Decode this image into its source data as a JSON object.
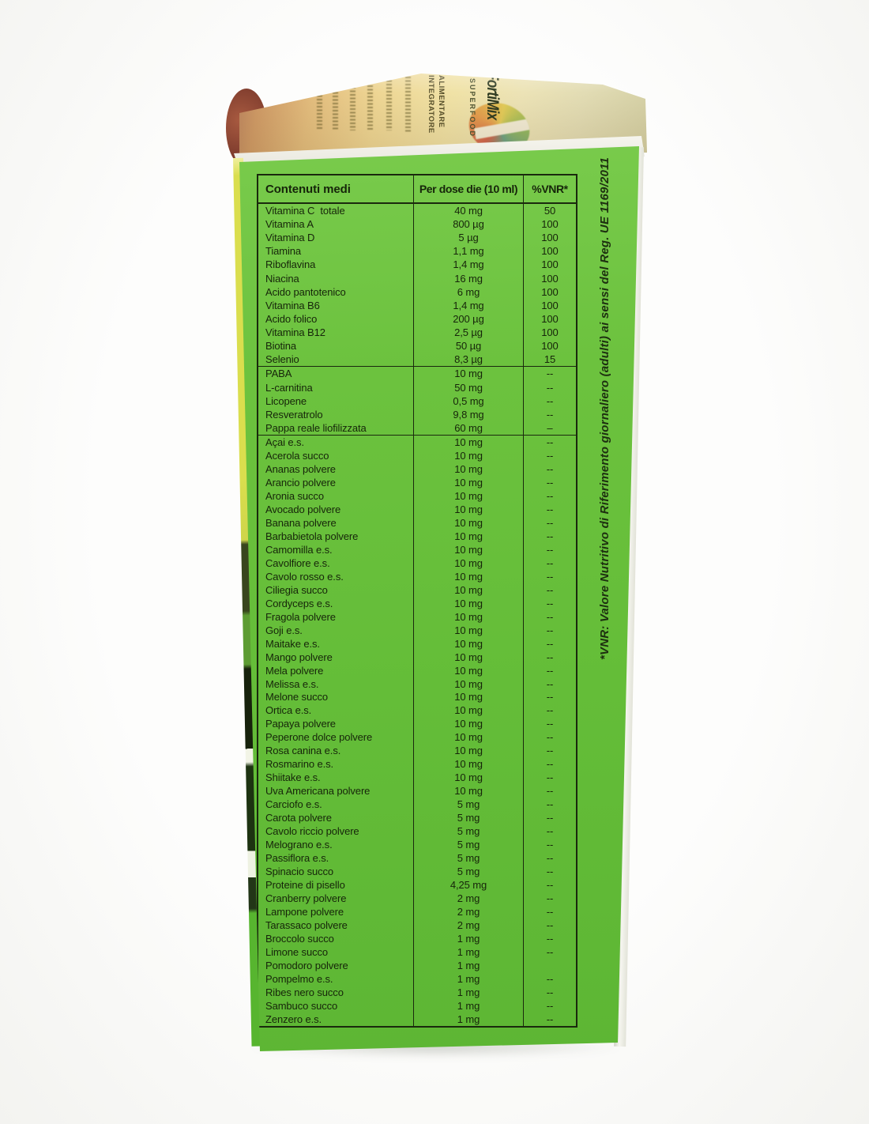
{
  "scene": {
    "description": "photo of supplement box side panel with nutrition table",
    "colors": {
      "panel_green": "#6cc23e",
      "ink_dark_green": "#1a290d",
      "front_edge_yellow": "#dade4e",
      "top_face_tan": "#eed694",
      "background_white": "#fdfdfc"
    }
  },
  "box_front": {
    "brand": "FortiMix",
    "sub_brand": "SUPERFOOD",
    "label_line1": "INTEGRATORE",
    "label_line2": "ALIMENTARE"
  },
  "side_note": "*VNR: Valore Nutritivo di Riferimento giornaliero (adulti) ai sensi del Reg. UE 1169/2011",
  "table": {
    "headers": [
      "Contenuti medi",
      "Per dose die (10 ml)",
      "%VNR*"
    ],
    "sections": [
      {
        "name": "vitamins-minerals",
        "rows": [
          [
            "Vitamina C  totale",
            "40 mg",
            "50"
          ],
          [
            "Vitamina A",
            "800 µg",
            "100"
          ],
          [
            "Vitamina D",
            "5 µg",
            "100"
          ],
          [
            "Tiamina",
            "1,1 mg",
            "100"
          ],
          [
            "Riboflavina",
            "1,4 mg",
            "100"
          ],
          [
            "Niacina",
            "16 mg",
            "100"
          ],
          [
            "Acido pantotenico",
            "6 mg",
            "100"
          ],
          [
            "Vitamina B6",
            "1,4 mg",
            "100"
          ],
          [
            "Acido folico",
            "200 µg",
            "100"
          ],
          [
            "Vitamina B12",
            "2,5 µg",
            "100"
          ],
          [
            "Biotina",
            "50 µg",
            "100"
          ],
          [
            "Selenio",
            "8,3 µg",
            "15"
          ]
        ]
      },
      {
        "name": "other-actives",
        "rows": [
          [
            "PABA",
            "10 mg",
            "--"
          ],
          [
            "L-carnitina",
            "50 mg",
            "--"
          ],
          [
            "Licopene",
            "0,5 mg",
            "--"
          ],
          [
            "Resveratrolo",
            "9,8 mg",
            "--"
          ],
          [
            "Pappa reale liofilizzata",
            "60 mg",
            "–"
          ]
        ]
      },
      {
        "name": "botanicals",
        "rows": [
          [
            "Açai e.s.",
            "10 mg",
            "--"
          ],
          [
            "Acerola succo",
            "10 mg",
            "--"
          ],
          [
            "Ananas polvere",
            "10 mg",
            "--"
          ],
          [
            "Arancio polvere",
            "10 mg",
            "--"
          ],
          [
            "Aronia succo",
            "10 mg",
            "--"
          ],
          [
            "Avocado polvere",
            "10 mg",
            "--"
          ],
          [
            "Banana polvere",
            "10 mg",
            "--"
          ],
          [
            "Barbabietola polvere",
            "10 mg",
            "--"
          ],
          [
            "Camomilla e.s.",
            "10 mg",
            "--"
          ],
          [
            "Cavolfiore e.s.",
            "10 mg",
            "--"
          ],
          [
            "Cavolo rosso e.s.",
            "10 mg",
            "--"
          ],
          [
            "Ciliegia succo",
            "10 mg",
            "--"
          ],
          [
            "Cordyceps e.s.",
            "10 mg",
            "--"
          ],
          [
            "Fragola polvere",
            "10 mg",
            "--"
          ],
          [
            "Goji e.s.",
            "10 mg",
            "--"
          ],
          [
            "Maitake e.s.",
            "10 mg",
            "--"
          ],
          [
            "Mango polvere",
            "10 mg",
            "--"
          ],
          [
            "Mela polvere",
            "10 mg",
            "--"
          ],
          [
            "Melissa e.s.",
            "10 mg",
            "--"
          ],
          [
            "Melone succo",
            "10 mg",
            "--"
          ],
          [
            "Ortica e.s.",
            "10 mg",
            "--"
          ],
          [
            "Papaya polvere",
            "10 mg",
            "--"
          ],
          [
            "Peperone dolce polvere",
            "10 mg",
            "--"
          ],
          [
            "Rosa canina e.s.",
            "10 mg",
            "--"
          ],
          [
            "Rosmarino e.s.",
            "10 mg",
            "--"
          ],
          [
            "Shiitake e.s.",
            "10 mg",
            "--"
          ],
          [
            "Uva Americana polvere",
            "10 mg",
            "--"
          ],
          [
            "Carciofo e.s.",
            "5 mg",
            "--"
          ],
          [
            "Carota polvere",
            "5 mg",
            "--"
          ],
          [
            "Cavolo riccio polvere",
            "5 mg",
            "--"
          ],
          [
            "Melograno e.s.",
            "5 mg",
            "--"
          ],
          [
            "Passiflora e.s.",
            "5 mg",
            "--"
          ],
          [
            "Spinacio succo",
            "5 mg",
            "--"
          ],
          [
            "Proteine di pisello",
            "4,25 mg",
            "--"
          ],
          [
            "Cranberry polvere",
            "2 mg",
            "--"
          ],
          [
            "Lampone polvere",
            "2 mg",
            "--"
          ],
          [
            "Tarassaco polvere",
            "2 mg",
            "--"
          ],
          [
            "Broccolo succo",
            "1 mg",
            "--"
          ],
          [
            "Limone succo",
            "1 mg",
            "--"
          ],
          [
            "Pomodoro polvere",
            "1 mg",
            ""
          ],
          [
            "Pompelmo e.s.",
            "1 mg",
            "--"
          ],
          [
            "Ribes nero succo",
            "1 mg",
            "--"
          ],
          [
            "Sambuco succo",
            "1 mg",
            "--"
          ],
          [
            "Zenzero e.s.",
            "1 mg",
            "--"
          ]
        ]
      }
    ]
  }
}
